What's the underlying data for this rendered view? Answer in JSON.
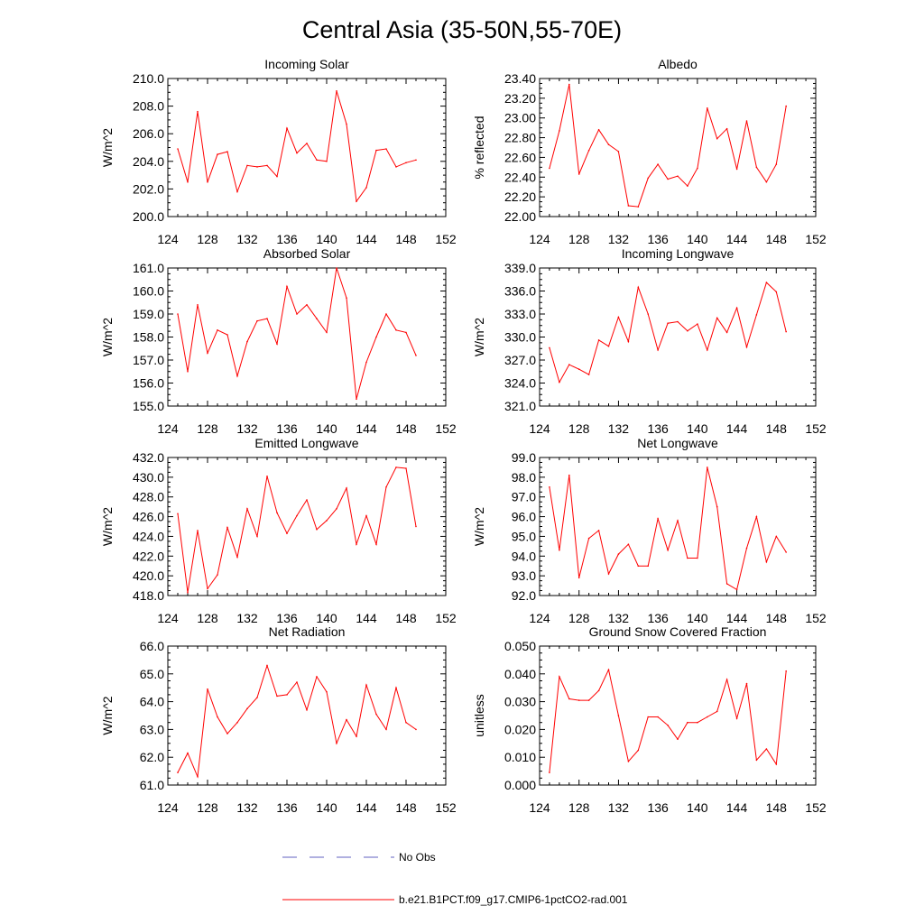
{
  "title": "Central Asia (35-50N,55-70E)",
  "colors": {
    "model": "#ff0000",
    "obs": "#6060c0",
    "axis": "#000000"
  },
  "legend": {
    "obs_label": "No Obs",
    "model_label": "b.e21.B1PCT.f09_g17.CMIP6-1pctCO2-rad.001"
  },
  "chart_data": [
    {
      "type": "line",
      "title": "Incoming Solar",
      "ylabel": "W/m^2",
      "xlim": [
        124,
        152
      ],
      "xticks": [
        124,
        128,
        132,
        136,
        140,
        144,
        148,
        152
      ],
      "ylim": [
        200.0,
        210.0
      ],
      "yticks": [
        "200.0",
        "202.0",
        "204.0",
        "206.0",
        "208.0",
        "210.0"
      ],
      "x": [
        125,
        126,
        127,
        128,
        129,
        130,
        131,
        132,
        133,
        134,
        135,
        136,
        137,
        138,
        139,
        140,
        141,
        142,
        143,
        144,
        145,
        146,
        147,
        148,
        149
      ],
      "series": [
        {
          "values": [
            204.9,
            202.5,
            207.6,
            202.5,
            204.5,
            204.7,
            201.8,
            203.7,
            203.6,
            203.7,
            202.9,
            206.4,
            204.6,
            205.3,
            204.1,
            204.0,
            209.1,
            206.7,
            201.1,
            202.1,
            204.8,
            204.9,
            203.6,
            203.9,
            204.1
          ]
        }
      ]
    },
    {
      "type": "line",
      "title": "Albedo",
      "ylabel": "% reflected",
      "xlim": [
        124,
        152
      ],
      "xticks": [
        124,
        128,
        132,
        136,
        140,
        144,
        148,
        152
      ],
      "ylim": [
        22.0,
        23.4
      ],
      "yticks": [
        "22.00",
        "22.20",
        "22.40",
        "22.60",
        "22.80",
        "23.00",
        "23.20",
        "23.40"
      ],
      "x": [
        125,
        126,
        127,
        128,
        129,
        130,
        131,
        132,
        133,
        134,
        135,
        136,
        137,
        138,
        139,
        140,
        141,
        142,
        143,
        144,
        145,
        146,
        147,
        148,
        149
      ],
      "series": [
        {
          "values": [
            22.49,
            22.87,
            23.34,
            22.43,
            22.67,
            22.88,
            22.73,
            22.66,
            22.11,
            22.1,
            22.39,
            22.53,
            22.38,
            22.41,
            22.31,
            22.49,
            23.1,
            22.79,
            22.89,
            22.48,
            22.97,
            22.5,
            22.35,
            22.53,
            23.12
          ]
        }
      ]
    },
    {
      "type": "line",
      "title": "Absorbed Solar",
      "ylabel": "W/m^2",
      "xlim": [
        124,
        152
      ],
      "xticks": [
        124,
        128,
        132,
        136,
        140,
        144,
        148,
        152
      ],
      "ylim": [
        155.0,
        161.0
      ],
      "yticks": [
        "155.0",
        "156.0",
        "157.0",
        "158.0",
        "159.0",
        "160.0",
        "161.0"
      ],
      "x": [
        125,
        126,
        127,
        128,
        129,
        130,
        131,
        132,
        133,
        134,
        135,
        136,
        137,
        138,
        139,
        140,
        141,
        142,
        143,
        144,
        145,
        146,
        147,
        148,
        149
      ],
      "series": [
        {
          "values": [
            159.0,
            156.5,
            159.4,
            157.3,
            158.3,
            158.1,
            156.3,
            157.8,
            158.7,
            158.8,
            157.7,
            160.2,
            159.0,
            159.4,
            158.8,
            158.2,
            161.0,
            159.7,
            155.3,
            156.9,
            158.0,
            159.0,
            158.3,
            158.2,
            157.2
          ]
        }
      ]
    },
    {
      "type": "line",
      "title": "Incoming Longwave",
      "ylabel": "W/m^2",
      "xlim": [
        124,
        152
      ],
      "xticks": [
        124,
        128,
        132,
        136,
        140,
        144,
        148,
        152
      ],
      "ylim": [
        321.0,
        339.0
      ],
      "yticks": [
        "321.0",
        "324.0",
        "327.0",
        "330.0",
        "333.0",
        "336.0",
        "339.0"
      ],
      "x": [
        125,
        126,
        127,
        128,
        129,
        130,
        131,
        132,
        133,
        134,
        135,
        136,
        137,
        138,
        139,
        140,
        141,
        142,
        143,
        144,
        145,
        146,
        147,
        148,
        149
      ],
      "series": [
        {
          "values": [
            328.6,
            324.1,
            326.4,
            325.8,
            325.1,
            329.6,
            328.8,
            332.6,
            329.4,
            336.5,
            333.0,
            328.3,
            331.8,
            332.0,
            330.8,
            331.7,
            328.3,
            332.5,
            330.6,
            333.8,
            328.7,
            332.9,
            337.1,
            335.9,
            330.7
          ]
        }
      ]
    },
    {
      "type": "line",
      "title": "Emitted Longwave",
      "ylabel": "W/m^2",
      "xlim": [
        124,
        152
      ],
      "xticks": [
        124,
        128,
        132,
        136,
        140,
        144,
        148,
        152
      ],
      "ylim": [
        418.0,
        432.0
      ],
      "yticks": [
        "418.0",
        "420.0",
        "422.0",
        "424.0",
        "426.0",
        "428.0",
        "430.0",
        "432.0"
      ],
      "x": [
        125,
        126,
        127,
        128,
        129,
        130,
        131,
        132,
        133,
        134,
        135,
        136,
        137,
        138,
        139,
        140,
        141,
        142,
        143,
        144,
        145,
        146,
        147,
        148,
        149
      ],
      "series": [
        {
          "values": [
            426.3,
            418.3,
            424.6,
            418.7,
            420.1,
            424.9,
            421.9,
            426.8,
            424.0,
            430.1,
            426.4,
            424.3,
            426.1,
            427.7,
            424.7,
            425.6,
            426.8,
            428.9,
            423.2,
            426.1,
            423.2,
            429.0,
            431.0,
            430.9,
            425.0
          ]
        }
      ]
    },
    {
      "type": "line",
      "title": "Net Longwave",
      "ylabel": "W/m^2",
      "xlim": [
        124,
        152
      ],
      "xticks": [
        124,
        128,
        132,
        136,
        140,
        144,
        148,
        152
      ],
      "ylim": [
        92.0,
        99.0
      ],
      "yticks": [
        "92.0",
        "93.0",
        "94.0",
        "95.0",
        "96.0",
        "97.0",
        "98.0",
        "99.0"
      ],
      "x": [
        125,
        126,
        127,
        128,
        129,
        130,
        131,
        132,
        133,
        134,
        135,
        136,
        137,
        138,
        139,
        140,
        141,
        142,
        143,
        144,
        145,
        146,
        147,
        148,
        149
      ],
      "series": [
        {
          "values": [
            97.5,
            94.3,
            98.1,
            92.9,
            94.9,
            95.3,
            93.1,
            94.1,
            94.6,
            93.5,
            93.5,
            95.9,
            94.3,
            95.8,
            93.9,
            93.9,
            98.5,
            96.5,
            92.6,
            92.3,
            94.4,
            96.0,
            93.7,
            95.0,
            94.2
          ]
        }
      ]
    },
    {
      "type": "line",
      "title": "Net Radiation",
      "ylabel": "W/m^2",
      "xlim": [
        124,
        152
      ],
      "xticks": [
        124,
        128,
        132,
        136,
        140,
        144,
        148,
        152
      ],
      "ylim": [
        61.0,
        66.0
      ],
      "yticks": [
        "61.0",
        "62.0",
        "63.0",
        "64.0",
        "65.0",
        "66.0"
      ],
      "x": [
        125,
        126,
        127,
        128,
        129,
        130,
        131,
        132,
        133,
        134,
        135,
        136,
        137,
        138,
        139,
        140,
        141,
        142,
        143,
        144,
        145,
        146,
        147,
        148,
        149
      ],
      "series": [
        {
          "values": [
            61.45,
            62.15,
            61.3,
            64.45,
            63.45,
            62.85,
            63.25,
            63.75,
            64.15,
            65.3,
            64.2,
            64.25,
            64.7,
            63.7,
            64.9,
            64.35,
            62.5,
            63.35,
            62.75,
            64.6,
            63.55,
            63.0,
            64.5,
            63.25,
            63.0
          ]
        }
      ]
    },
    {
      "type": "line",
      "title": "Ground Snow Covered Fraction",
      "ylabel": "unitless",
      "xlim": [
        124,
        152
      ],
      "xticks": [
        124,
        128,
        132,
        136,
        140,
        144,
        148,
        152
      ],
      "ylim": [
        0.0,
        0.05
      ],
      "yticks": [
        "0.000",
        "0.010",
        "0.020",
        "0.030",
        "0.040",
        "0.050"
      ],
      "x": [
        125,
        126,
        127,
        128,
        129,
        130,
        131,
        132,
        133,
        134,
        135,
        136,
        137,
        138,
        139,
        140,
        141,
        142,
        143,
        144,
        145,
        146,
        147,
        148,
        149
      ],
      "series": [
        {
          "values": [
            0.0045,
            0.039,
            0.031,
            0.0305,
            0.0305,
            0.034,
            0.0415,
            0.025,
            0.0085,
            0.0125,
            0.0245,
            0.0245,
            0.0215,
            0.0165,
            0.0225,
            0.0225,
            0.0245,
            0.0265,
            0.038,
            0.024,
            0.0365,
            0.009,
            0.013,
            0.0075,
            0.041
          ]
        }
      ]
    }
  ]
}
